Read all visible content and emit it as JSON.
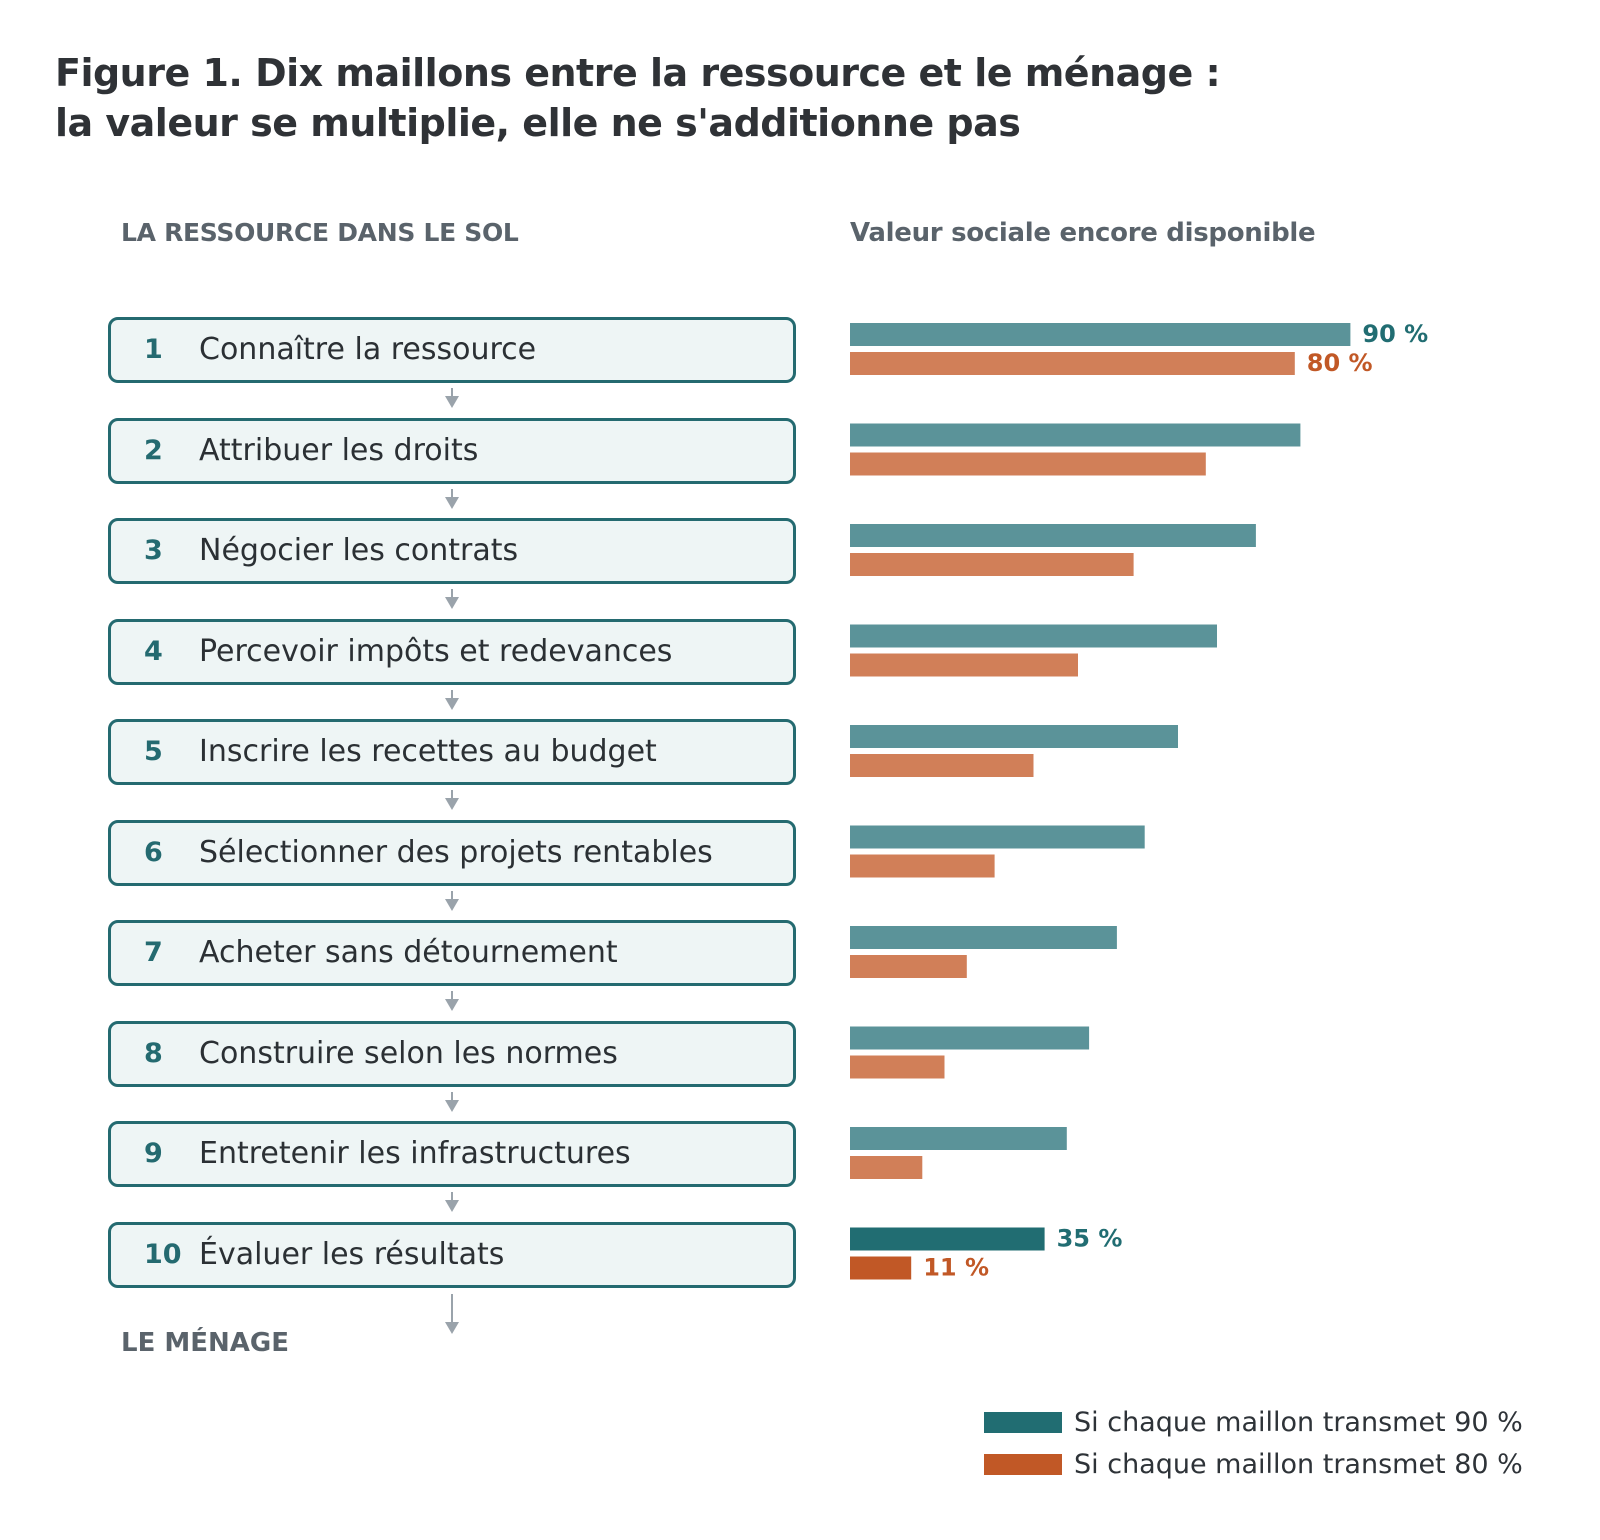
{
  "title": {
    "line1": "Figure 1. Dix maillons entre la ressource et le ménage :",
    "line2": "la valeur se multiplie, elle ne s'additionne pas"
  },
  "left_header": "LA RESSOURCE DANS LE SOL",
  "right_header": "Valeur sociale encore disponible",
  "bottom_label": "LE MÉNAGE",
  "steps": [
    {
      "num": "1",
      "label": "Connaître la ressource"
    },
    {
      "num": "2",
      "label": "Attribuer les droits"
    },
    {
      "num": "3",
      "label": "Négocier les contrats"
    },
    {
      "num": "4",
      "label": "Percevoir impôts et redevances"
    },
    {
      "num": "5",
      "label": "Inscrire les recettes au budget"
    },
    {
      "num": "6",
      "label": "Sélectionner des projets rentables"
    },
    {
      "num": "7",
      "label": "Acheter sans détournement"
    },
    {
      "num": "8",
      "label": "Construire selon les normes"
    },
    {
      "num": "9",
      "label": "Entretenir les infrastructures"
    },
    {
      "num": "10",
      "label": "Évaluer les résultats"
    }
  ],
  "colors": {
    "teal": "#5b9399",
    "teal_dark": "#216d72",
    "orange": "#d17f58",
    "orange_dark": "#c15826",
    "box_border": "#246a70",
    "box_fill": "#eef5f5",
    "arrow": "#9aa3ab"
  },
  "chart_data": {
    "type": "bar",
    "orientation": "horizontal",
    "categories": [
      "1",
      "2",
      "3",
      "4",
      "5",
      "6",
      "7",
      "8",
      "9",
      "10"
    ],
    "xlim": [
      0,
      100
    ],
    "series": [
      {
        "name": "Si chaque maillon transmet 90 %",
        "values": [
          90,
          81,
          73,
          66,
          59,
          53,
          48,
          43,
          39,
          35
        ]
      },
      {
        "name": "Si chaque maillon transmet 80 %",
        "values": [
          80,
          64,
          51,
          41,
          33,
          26,
          21,
          17,
          13,
          11
        ]
      }
    ],
    "data_labels": [
      {
        "series": 0,
        "index": 0,
        "text": "90 %"
      },
      {
        "series": 1,
        "index": 0,
        "text": "80 %"
      },
      {
        "series": 0,
        "index": 9,
        "text": "35 %"
      },
      {
        "series": 1,
        "index": 9,
        "text": "11 %"
      }
    ],
    "grid": false,
    "legend_position": "bottom-right"
  }
}
